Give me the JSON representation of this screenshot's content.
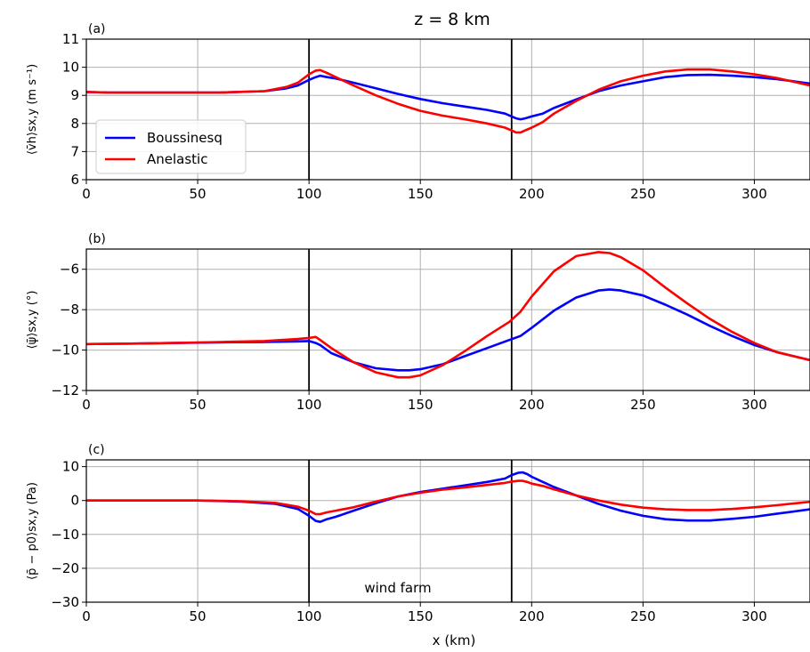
{
  "figure_title": "z = 8 km",
  "x_axis_label": "x (km)",
  "annotation": "wind farm",
  "legend": [
    {
      "name": "Boussinesq",
      "color": "#0000ff"
    },
    {
      "name": "Anelastic",
      "color": "#ff0000"
    }
  ],
  "chart_data": [
    {
      "panel": "(a)",
      "type": "line",
      "ylabel": "⟨v̄h⟩sx,y (m s⁻¹)",
      "xlim": [
        0,
        325
      ],
      "ylim": [
        6,
        11
      ],
      "x_ticks": [
        0,
        50,
        100,
        150,
        200,
        250,
        300
      ],
      "y_ticks": [
        6,
        7,
        8,
        9,
        10,
        11
      ],
      "grid": true,
      "vertical_lines": [
        100,
        191
      ],
      "legend_position": "lower-left",
      "series": [
        {
          "name": "Boussinesq",
          "color": "#0000ff",
          "x": [
            0,
            10,
            20,
            40,
            60,
            80,
            90,
            95,
            100,
            103,
            105,
            108,
            112,
            120,
            130,
            140,
            150,
            160,
            170,
            180,
            188,
            191,
            193,
            195,
            197,
            200,
            205,
            210,
            220,
            230,
            240,
            250,
            260,
            270,
            280,
            290,
            300,
            310,
            325
          ],
          "values": [
            9.12,
            9.1,
            9.1,
            9.1,
            9.1,
            9.15,
            9.25,
            9.35,
            9.55,
            9.65,
            9.7,
            9.65,
            9.6,
            9.45,
            9.25,
            9.05,
            8.87,
            8.72,
            8.6,
            8.48,
            8.35,
            8.25,
            8.18,
            8.15,
            8.18,
            8.25,
            8.35,
            8.55,
            8.85,
            9.15,
            9.35,
            9.5,
            9.65,
            9.72,
            9.73,
            9.7,
            9.65,
            9.58,
            9.42
          ]
        },
        {
          "name": "Anelastic",
          "color": "#ff0000",
          "x": [
            0,
            10,
            20,
            40,
            60,
            80,
            90,
            95,
            100,
            103,
            105,
            108,
            112,
            120,
            130,
            140,
            150,
            160,
            170,
            180,
            188,
            191,
            193,
            195,
            197,
            200,
            205,
            210,
            220,
            230,
            240,
            250,
            260,
            270,
            280,
            290,
            300,
            310,
            325
          ],
          "values": [
            9.12,
            9.1,
            9.1,
            9.1,
            9.1,
            9.15,
            9.3,
            9.45,
            9.75,
            9.88,
            9.9,
            9.8,
            9.65,
            9.35,
            9.0,
            8.7,
            8.45,
            8.28,
            8.15,
            8.0,
            7.85,
            7.75,
            7.68,
            7.68,
            7.75,
            7.85,
            8.05,
            8.35,
            8.8,
            9.2,
            9.5,
            9.7,
            9.85,
            9.92,
            9.92,
            9.85,
            9.75,
            9.62,
            9.35
          ]
        }
      ]
    },
    {
      "panel": "(b)",
      "type": "line",
      "ylabel": "⟨ψ̄⟩sx,y (°)",
      "xlim": [
        0,
        325
      ],
      "ylim": [
        -12,
        -5
      ],
      "x_ticks": [
        0,
        50,
        100,
        150,
        200,
        250,
        300
      ],
      "y_ticks": [
        -12,
        -10,
        -8,
        -6
      ],
      "grid": true,
      "vertical_lines": [
        100,
        191
      ],
      "series": [
        {
          "name": "Boussinesq",
          "color": "#0000ff",
          "x": [
            0,
            20,
            40,
            60,
            80,
            95,
            100,
            103,
            105,
            110,
            120,
            130,
            140,
            145,
            150,
            160,
            170,
            180,
            190,
            195,
            200,
            210,
            220,
            230,
            235,
            240,
            250,
            260,
            270,
            280,
            290,
            300,
            310,
            325
          ],
          "values": [
            -9.7,
            -9.68,
            -9.65,
            -9.62,
            -9.6,
            -9.57,
            -9.55,
            -9.65,
            -9.75,
            -10.15,
            -10.6,
            -10.9,
            -11.0,
            -11.0,
            -10.95,
            -10.7,
            -10.3,
            -9.9,
            -9.5,
            -9.3,
            -8.9,
            -8.05,
            -7.4,
            -7.05,
            -7.0,
            -7.05,
            -7.3,
            -7.75,
            -8.25,
            -8.8,
            -9.3,
            -9.75,
            -10.1,
            -10.5
          ]
        },
        {
          "name": "Anelastic",
          "color": "#ff0000",
          "x": [
            0,
            20,
            40,
            60,
            80,
            95,
            100,
            103,
            105,
            110,
            120,
            130,
            140,
            145,
            150,
            160,
            170,
            180,
            190,
            195,
            200,
            210,
            220,
            230,
            235,
            240,
            250,
            260,
            270,
            280,
            290,
            300,
            310,
            325
          ],
          "values": [
            -9.7,
            -9.68,
            -9.65,
            -9.6,
            -9.55,
            -9.45,
            -9.4,
            -9.35,
            -9.5,
            -9.9,
            -10.6,
            -11.1,
            -11.35,
            -11.35,
            -11.25,
            -10.75,
            -10.05,
            -9.3,
            -8.6,
            -8.1,
            -7.35,
            -6.1,
            -5.35,
            -5.15,
            -5.2,
            -5.4,
            -6.05,
            -6.9,
            -7.7,
            -8.45,
            -9.1,
            -9.65,
            -10.1,
            -10.5
          ]
        }
      ]
    },
    {
      "panel": "(c)",
      "type": "line",
      "ylabel": "⟨p̄ − p0⟩sx,y (Pa)",
      "xlim": [
        0,
        325
      ],
      "ylim": [
        -30,
        12
      ],
      "x_ticks": [
        0,
        50,
        100,
        150,
        200,
        250,
        300
      ],
      "y_ticks": [
        -30,
        -20,
        -10,
        0,
        10
      ],
      "grid": true,
      "vertical_lines": [
        100,
        191
      ],
      "annotation": "wind farm",
      "series": [
        {
          "name": "Boussinesq",
          "color": "#0000ff",
          "x": [
            0,
            10,
            30,
            50,
            70,
            85,
            95,
            100,
            103,
            105,
            108,
            112,
            120,
            130,
            140,
            150,
            160,
            170,
            180,
            188,
            191,
            194,
            196,
            198,
            200,
            205,
            210,
            220,
            230,
            240,
            250,
            260,
            270,
            280,
            290,
            300,
            310,
            325
          ],
          "values": [
            0,
            0,
            0,
            0,
            -0.3,
            -1,
            -2.5,
            -4.5,
            -6,
            -6.3,
            -5.5,
            -4.8,
            -3,
            -0.8,
            1.2,
            2.5,
            3.5,
            4.5,
            5.5,
            6.5,
            7.5,
            8.2,
            8.3,
            7.8,
            7,
            5.5,
            4,
            1.5,
            -1,
            -3,
            -4.5,
            -5.5,
            -5.9,
            -5.9,
            -5.4,
            -4.8,
            -3.9,
            -2.6
          ]
        },
        {
          "name": "Anelastic",
          "color": "#ff0000",
          "x": [
            0,
            10,
            30,
            50,
            70,
            85,
            95,
            100,
            103,
            105,
            108,
            112,
            120,
            130,
            140,
            150,
            160,
            170,
            180,
            188,
            191,
            194,
            196,
            198,
            200,
            205,
            210,
            220,
            230,
            240,
            250,
            260,
            270,
            280,
            290,
            300,
            310,
            325
          ],
          "values": [
            0,
            0,
            0,
            0,
            -0.2,
            -0.7,
            -1.8,
            -3,
            -4,
            -4,
            -3.5,
            -3,
            -2,
            -0.3,
            1.2,
            2.3,
            3.2,
            3.9,
            4.6,
            5.2,
            5.6,
            5.8,
            5.8,
            5.5,
            5,
            4.3,
            3.3,
            1.5,
            0,
            -1.2,
            -2.1,
            -2.6,
            -2.8,
            -2.8,
            -2.5,
            -2,
            -1.4,
            -0.4
          ]
        }
      ]
    }
  ]
}
